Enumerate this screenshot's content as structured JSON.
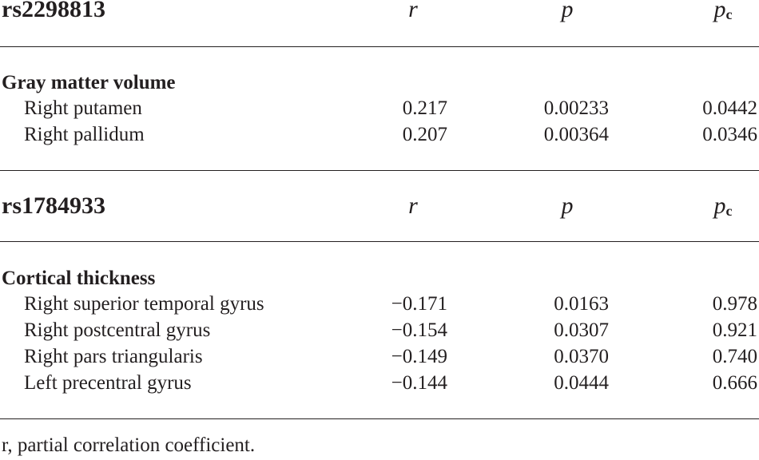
{
  "sections": [
    {
      "snp": "rs2298813",
      "columns": [
        {
          "symbol": "r"
        },
        {
          "symbol": "p"
        },
        {
          "symbol": "p",
          "subscript": "c"
        }
      ],
      "group": "Gray matter volume",
      "rows": [
        [
          "Right putamen",
          "0.217",
          "0.00233",
          "0.0442"
        ],
        [
          "Right pallidum",
          "0.207",
          "0.00364",
          "0.0346"
        ]
      ]
    },
    {
      "snp": "rs1784933",
      "columns": [
        {
          "symbol": "r"
        },
        {
          "symbol": "p"
        },
        {
          "symbol": "p",
          "subscript": "c"
        }
      ],
      "group": "Cortical thickness",
      "rows": [
        [
          "Right superior temporal gyrus",
          "−0.171",
          "0.0163",
          "0.978"
        ],
        [
          "Right postcentral gyrus",
          "−0.154",
          "0.0307",
          "0.921"
        ],
        [
          "Right pars triangularis",
          "−0.149",
          "0.0370",
          "0.740"
        ],
        [
          "Left precentral gyrus",
          "−0.144",
          "0.0444",
          "0.666"
        ]
      ]
    }
  ],
  "footnote": "r, partial correlation coefficient."
}
